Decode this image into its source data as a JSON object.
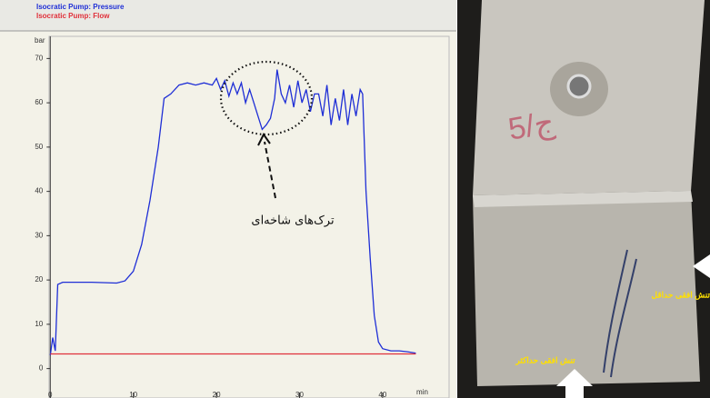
{
  "chart_data": {
    "type": "line",
    "legend": [
      "Isocratic Pump: Pressure",
      "Isocratic Pump: Flow"
    ],
    "ylabel": "bar",
    "xlabel": "min",
    "annotation": "ترک‌های شاخه‌ای",
    "x": [
      0,
      0.3,
      0.6,
      0.9,
      1.5,
      5,
      8,
      9,
      10,
      11,
      12,
      13,
      13.7,
      14.5,
      15.5,
      16.5,
      17.5,
      18.5,
      19.5,
      20,
      20.5,
      21,
      21.5,
      22,
      22.5,
      23,
      23.5,
      24,
      24.5,
      25,
      25.5,
      26,
      26.5,
      27,
      27.3,
      27.8,
      28.3,
      28.8,
      29.3,
      29.8,
      30.3,
      30.8,
      31.3,
      31.8,
      32.3,
      32.8,
      33.3,
      33.8,
      34.3,
      34.8,
      35.3,
      35.8,
      36.3,
      36.8,
      37.3,
      37.6,
      38,
      38.5,
      39,
      39.5,
      40,
      41,
      42,
      43,
      44
    ],
    "series": [
      {
        "name": "Isocratic Pump: Pressure",
        "color": "#1f2fd6",
        "values": [
          3,
          7,
          4,
          19,
          19.5,
          19.5,
          19.3,
          19.8,
          22,
          28,
          38,
          50,
          61,
          62,
          64,
          64.5,
          64,
          64.5,
          64,
          65.5,
          63,
          65,
          61.5,
          64.5,
          62,
          64.5,
          60,
          63,
          60,
          57,
          54,
          55,
          56.5,
          61,
          67.5,
          62,
          60,
          64,
          59,
          65,
          60,
          63,
          58,
          62,
          62,
          57,
          64,
          55,
          61,
          56,
          63,
          55,
          62,
          57,
          63,
          62,
          40,
          25,
          12,
          6,
          4.5,
          4,
          4,
          3.8,
          3.5
        ]
      },
      {
        "name": "Isocratic Pump: Flow",
        "color": "#e0303a",
        "values": [
          3.3,
          3.3,
          3.3,
          3.3,
          3.3,
          3.3,
          3.3,
          3.3,
          3.3,
          3.3,
          3.3,
          3.3,
          3.3,
          3.3,
          3.3,
          3.3,
          3.3,
          3.3,
          3.3,
          3.3,
          3.3,
          3.3,
          3.3,
          3.3,
          3.3,
          3.3,
          3.3,
          3.3,
          3.3,
          3.3,
          3.3,
          3.3,
          3.3,
          3.3,
          3.3,
          3.3,
          3.3,
          3.3,
          3.3,
          3.3,
          3.3,
          3.3,
          3.3,
          3.3,
          3.3,
          3.3,
          3.3,
          3.3,
          3.3,
          3.3,
          3.3,
          3.3,
          3.3,
          3.3,
          3.3,
          3.3,
          3.3,
          3.3,
          3.3,
          3.3,
          3.3,
          3.3,
          3.3,
          3.3,
          3.3
        ]
      }
    ],
    "xlim": [
      -2,
      48
    ],
    "ylim": [
      -5,
      75
    ],
    "xticks": [
      0,
      10,
      20,
      30,
      40
    ],
    "yticks": [
      0,
      10,
      20,
      30,
      40,
      50,
      60,
      70
    ]
  },
  "photo": {
    "marking": "5/ج",
    "label_min": "تنش افقی حداقل",
    "label_max": "تنش افقی حداکثر"
  }
}
